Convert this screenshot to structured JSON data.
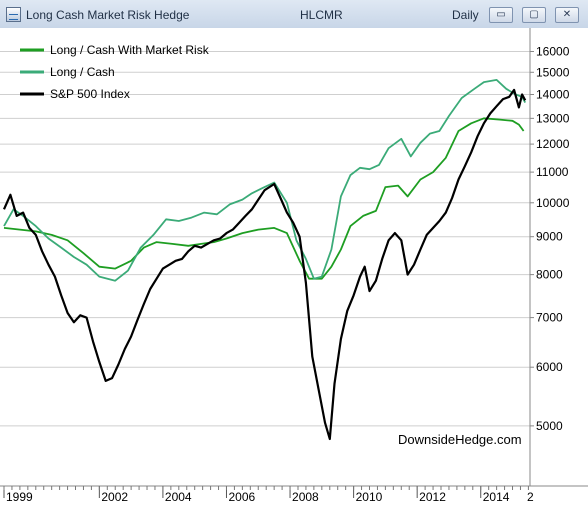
{
  "window": {
    "title": "Long Cash Market Risk Hedge",
    "symbol": "HLCMR",
    "period": "Daily",
    "buttons": {
      "minimize": "▭",
      "maximize": "▢",
      "close": "✕"
    }
  },
  "colors": {
    "long_cash_with_market_risk": "#1e9e22",
    "long_cash": "#3bab78",
    "sp500": "#000000",
    "grid": "#cfcfcf"
  },
  "chart_data": {
    "type": "line",
    "watermark": "DownsideHedge.com",
    "y_scale": "log",
    "ylim": [
      4200,
      17000
    ],
    "y_ticks": [
      5000,
      6000,
      7000,
      8000,
      9000,
      10000,
      11000,
      12000,
      13000,
      14000,
      15000,
      16000
    ],
    "y_tick_labels": [
      "5000",
      "6000",
      "7000",
      "8000",
      "9000",
      "10000",
      "11000",
      "12000",
      "13000",
      "14000",
      "15000",
      "16000"
    ],
    "xlim": [
      1999.0,
      2015.55
    ],
    "x_ticks": [
      1999,
      2002,
      2004,
      2006,
      2008,
      2010,
      2012,
      2014
    ],
    "x_tick_labels": [
      "1999",
      "2002",
      "2004",
      "2006",
      "2008",
      "2010",
      "2012",
      "2014"
    ],
    "x_cut_label": "2",
    "legend_placement": "top-left",
    "grid": true,
    "series": [
      {
        "name": "Long / Cash With Market Risk",
        "color": "#1e9e22",
        "points": [
          [
            1999.0,
            9250
          ],
          [
            1999.5,
            9200
          ],
          [
            2000.0,
            9150
          ],
          [
            2000.5,
            9050
          ],
          [
            2001.0,
            8900
          ],
          [
            2001.5,
            8550
          ],
          [
            2002.0,
            8200
          ],
          [
            2002.5,
            8150
          ],
          [
            2003.0,
            8350
          ],
          [
            2003.4,
            8700
          ],
          [
            2003.8,
            8850
          ],
          [
            2004.3,
            8800
          ],
          [
            2004.8,
            8750
          ],
          [
            2005.2,
            8800
          ],
          [
            2005.6,
            8850
          ],
          [
            2006.0,
            8950
          ],
          [
            2006.5,
            9100
          ],
          [
            2007.0,
            9200
          ],
          [
            2007.5,
            9250
          ],
          [
            2007.9,
            9100
          ],
          [
            2008.3,
            8350
          ],
          [
            2008.6,
            7900
          ],
          [
            2009.0,
            7900
          ],
          [
            2009.3,
            8200
          ],
          [
            2009.6,
            8650
          ],
          [
            2009.9,
            9300
          ],
          [
            2010.3,
            9600
          ],
          [
            2010.7,
            9750
          ],
          [
            2011.0,
            10500
          ],
          [
            2011.4,
            10550
          ],
          [
            2011.7,
            10200
          ],
          [
            2012.1,
            10750
          ],
          [
            2012.5,
            11000
          ],
          [
            2012.9,
            11500
          ],
          [
            2013.3,
            12500
          ],
          [
            2013.7,
            12800
          ],
          [
            2014.1,
            13000
          ],
          [
            2014.6,
            12950
          ],
          [
            2015.0,
            12900
          ],
          [
            2015.2,
            12750
          ],
          [
            2015.35,
            12500
          ]
        ]
      },
      {
        "name": "Long / Cash",
        "color": "#3bab78",
        "points": [
          [
            1999.0,
            9300
          ],
          [
            1999.3,
            9800
          ],
          [
            1999.6,
            9600
          ],
          [
            2000.0,
            9300
          ],
          [
            2000.4,
            8950
          ],
          [
            2000.8,
            8700
          ],
          [
            2001.2,
            8450
          ],
          [
            2001.6,
            8250
          ],
          [
            2002.0,
            7950
          ],
          [
            2002.5,
            7850
          ],
          [
            2002.9,
            8100
          ],
          [
            2003.3,
            8700
          ],
          [
            2003.7,
            9050
          ],
          [
            2004.1,
            9500
          ],
          [
            2004.5,
            9450
          ],
          [
            2004.9,
            9550
          ],
          [
            2005.3,
            9700
          ],
          [
            2005.7,
            9650
          ],
          [
            2006.1,
            9950
          ],
          [
            2006.5,
            10100
          ],
          [
            2006.8,
            10300
          ],
          [
            2007.1,
            10450
          ],
          [
            2007.5,
            10650
          ],
          [
            2007.9,
            10000
          ],
          [
            2008.2,
            8900
          ],
          [
            2008.5,
            8400
          ],
          [
            2008.75,
            7900
          ],
          [
            2009.0,
            7950
          ],
          [
            2009.3,
            8650
          ],
          [
            2009.6,
            10200
          ],
          [
            2009.9,
            10900
          ],
          [
            2010.2,
            11150
          ],
          [
            2010.5,
            11100
          ],
          [
            2010.8,
            11250
          ],
          [
            2011.1,
            11850
          ],
          [
            2011.5,
            12200
          ],
          [
            2011.8,
            11550
          ],
          [
            2012.1,
            12050
          ],
          [
            2012.4,
            12400
          ],
          [
            2012.7,
            12500
          ],
          [
            2013.0,
            13100
          ],
          [
            2013.4,
            13850
          ],
          [
            2013.8,
            14250
          ],
          [
            2014.1,
            14550
          ],
          [
            2014.5,
            14650
          ],
          [
            2014.8,
            14250
          ],
          [
            2015.1,
            14000
          ],
          [
            2015.3,
            13900
          ],
          [
            2015.4,
            13650
          ]
        ]
      },
      {
        "name": "S&P 500 Index",
        "color": "#000000",
        "points": [
          [
            1999.0,
            9800
          ],
          [
            1999.2,
            10250
          ],
          [
            1999.4,
            9600
          ],
          [
            1999.6,
            9700
          ],
          [
            1999.8,
            9250
          ],
          [
            2000.0,
            9050
          ],
          [
            2000.2,
            8600
          ],
          [
            2000.4,
            8250
          ],
          [
            2000.6,
            7950
          ],
          [
            2000.8,
            7500
          ],
          [
            2001.0,
            7100
          ],
          [
            2001.2,
            6900
          ],
          [
            2001.4,
            7050
          ],
          [
            2001.6,
            7000
          ],
          [
            2001.8,
            6500
          ],
          [
            2002.0,
            6100
          ],
          [
            2002.2,
            5750
          ],
          [
            2002.4,
            5800
          ],
          [
            2002.6,
            6050
          ],
          [
            2002.8,
            6350
          ],
          [
            2003.0,
            6600
          ],
          [
            2003.2,
            6950
          ],
          [
            2003.4,
            7300
          ],
          [
            2003.6,
            7650
          ],
          [
            2003.8,
            7900
          ],
          [
            2004.0,
            8150
          ],
          [
            2004.2,
            8250
          ],
          [
            2004.4,
            8350
          ],
          [
            2004.6,
            8400
          ],
          [
            2004.8,
            8600
          ],
          [
            2005.0,
            8750
          ],
          [
            2005.2,
            8700
          ],
          [
            2005.4,
            8800
          ],
          [
            2005.6,
            8900
          ],
          [
            2005.8,
            8950
          ],
          [
            2006.0,
            9100
          ],
          [
            2006.2,
            9200
          ],
          [
            2006.4,
            9400
          ],
          [
            2006.6,
            9600
          ],
          [
            2006.8,
            9800
          ],
          [
            2007.0,
            10100
          ],
          [
            2007.2,
            10400
          ],
          [
            2007.5,
            10600
          ],
          [
            2007.7,
            10150
          ],
          [
            2007.9,
            9700
          ],
          [
            2008.1,
            9400
          ],
          [
            2008.3,
            9000
          ],
          [
            2008.5,
            7800
          ],
          [
            2008.7,
            6200
          ],
          [
            2008.9,
            5600
          ],
          [
            2009.1,
            5050
          ],
          [
            2009.25,
            4800
          ],
          [
            2009.4,
            5700
          ],
          [
            2009.6,
            6550
          ],
          [
            2009.8,
            7150
          ],
          [
            2010.0,
            7500
          ],
          [
            2010.2,
            7950
          ],
          [
            2010.35,
            8200
          ],
          [
            2010.5,
            7600
          ],
          [
            2010.7,
            7850
          ],
          [
            2010.9,
            8400
          ],
          [
            2011.1,
            8900
          ],
          [
            2011.3,
            9100
          ],
          [
            2011.5,
            8900
          ],
          [
            2011.7,
            8000
          ],
          [
            2011.9,
            8250
          ],
          [
            2012.1,
            8650
          ],
          [
            2012.3,
            9050
          ],
          [
            2012.5,
            9250
          ],
          [
            2012.7,
            9450
          ],
          [
            2012.9,
            9700
          ],
          [
            2013.1,
            10150
          ],
          [
            2013.3,
            10750
          ],
          [
            2013.5,
            11200
          ],
          [
            2013.7,
            11700
          ],
          [
            2013.9,
            12300
          ],
          [
            2014.1,
            12800
          ],
          [
            2014.3,
            13200
          ],
          [
            2014.5,
            13500
          ],
          [
            2014.7,
            13800
          ],
          [
            2014.9,
            13900
          ],
          [
            2015.05,
            14200
          ],
          [
            2015.2,
            13450
          ],
          [
            2015.3,
            14000
          ],
          [
            2015.4,
            13750
          ]
        ]
      }
    ]
  }
}
